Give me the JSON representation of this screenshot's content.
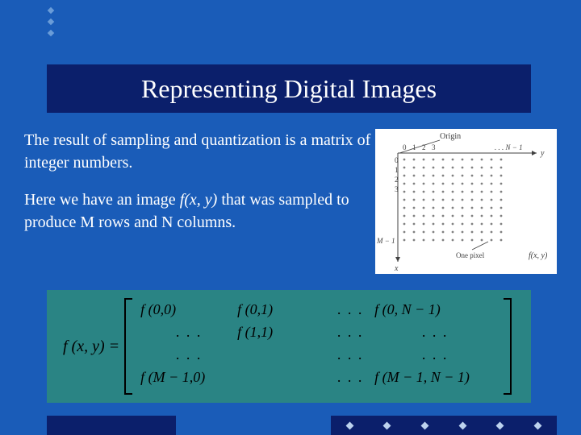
{
  "title": "Representing Digital Images",
  "body": {
    "p1": "The result of sampling and quantization is a matrix of integer numbers.",
    "p2a": "Here we have an image ",
    "p2_func": "f(x, y)",
    "p2b": " that was sampled to produce M rows and N columns."
  },
  "grid": {
    "origin_label": "Origin",
    "col_labels": [
      "0",
      "1",
      "2",
      "3"
    ],
    "col_end": "N − 1",
    "row_end": "M − 1",
    "one_pixel": "One pixel",
    "fxy": "f(x, y)",
    "axis_y": "y",
    "axis_x": "x",
    "dot_color": "#808080",
    "text_color": "#404040",
    "rows": 11,
    "cols": 11
  },
  "matrix": {
    "lhs": "f (x, y) =",
    "cells": [
      [
        "f (0,0)",
        "f (0,1)",
        ". . .",
        "f (0, N − 1)"
      ],
      [
        ". . .",
        "f (1,1)",
        ". . .",
        ". . ."
      ],
      [
        ". . .",
        "",
        ". . .",
        ". . ."
      ],
      [
        "f (M − 1,0)",
        "",
        ". . .",
        "f (M − 1, N − 1)"
      ]
    ]
  },
  "colors": {
    "slide_bg": "#1a5cb8",
    "title_bar": "#0b1f6b",
    "matrix_bg": "#2a8484",
    "title_text": "#ffffff",
    "body_text": "#ffffff",
    "matrix_text": "#000000"
  },
  "bullets": {
    "top_count": 3,
    "footer_count": 6
  }
}
